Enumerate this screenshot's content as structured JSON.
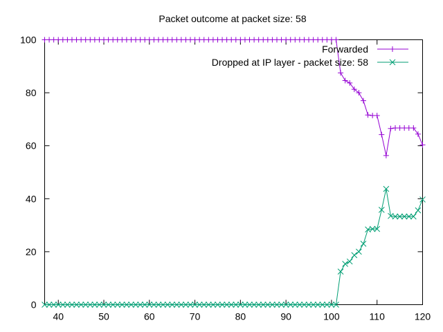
{
  "chart_data": {
    "type": "line",
    "title": "Packet outcome at packet size: 58",
    "xlabel": "",
    "ylabel": "",
    "xlim": [
      37,
      120
    ],
    "ylim": [
      0,
      100
    ],
    "x_ticks": [
      "40",
      "50",
      "60",
      "70",
      "80",
      "90",
      "100",
      "110",
      "120"
    ],
    "y_ticks": [
      "0",
      "20",
      "40",
      "60",
      "80",
      "100"
    ],
    "grid": false,
    "legend_position": "top-right",
    "x": [
      37,
      38,
      39,
      40,
      41,
      42,
      43,
      44,
      45,
      46,
      47,
      48,
      49,
      50,
      51,
      52,
      53,
      54,
      55,
      56,
      57,
      58,
      59,
      60,
      61,
      62,
      63,
      64,
      65,
      66,
      67,
      68,
      69,
      70,
      71,
      72,
      73,
      74,
      75,
      76,
      77,
      78,
      79,
      80,
      81,
      82,
      83,
      84,
      85,
      86,
      87,
      88,
      89,
      90,
      91,
      92,
      93,
      94,
      95,
      96,
      97,
      98,
      99,
      100,
      101,
      102,
      103,
      104,
      105,
      106,
      107,
      108,
      109,
      110,
      111,
      112,
      113,
      114,
      115,
      116,
      117,
      118,
      119,
      120
    ],
    "series": [
      {
        "name": "Forwarded",
        "color": "#9400d3",
        "marker": "plus",
        "values": [
          100,
          100,
          100,
          100,
          100,
          100,
          100,
          100,
          100,
          100,
          100,
          100,
          100,
          100,
          100,
          100,
          100,
          100,
          100,
          100,
          100,
          100,
          100,
          100,
          100,
          100,
          100,
          100,
          100,
          100,
          100,
          100,
          100,
          100,
          100,
          100,
          100,
          100,
          100,
          100,
          100,
          100,
          100,
          100,
          100,
          100,
          100,
          100,
          100,
          100,
          100,
          100,
          100,
          100,
          100,
          100,
          100,
          100,
          100,
          100,
          100,
          100,
          100,
          100,
          100,
          87.5,
          84.6,
          83.7,
          81.3,
          80.0,
          77.0,
          71.6,
          71.4,
          71.4,
          64.2,
          56.3,
          66.5,
          66.7,
          66.7,
          66.7,
          66.7,
          66.7,
          64.4,
          60.3
        ]
      },
      {
        "name": "Dropped at IP layer - packet size: 58",
        "color": "#009e73",
        "marker": "x",
        "values": [
          0,
          0,
          0,
          0,
          0,
          0,
          0,
          0,
          0,
          0,
          0,
          0,
          0,
          0,
          0,
          0,
          0,
          0,
          0,
          0,
          0,
          0,
          0,
          0,
          0,
          0,
          0,
          0,
          0,
          0,
          0,
          0,
          0,
          0,
          0,
          0,
          0,
          0,
          0,
          0,
          0,
          0,
          0,
          0,
          0,
          0,
          0,
          0,
          0,
          0,
          0,
          0,
          0,
          0,
          0,
          0,
          0,
          0,
          0,
          0,
          0,
          0,
          0,
          0,
          0,
          12.5,
          15.4,
          16.3,
          18.7,
          20.0,
          23.0,
          28.4,
          28.6,
          28.6,
          35.8,
          43.7,
          33.5,
          33.3,
          33.3,
          33.3,
          33.3,
          33.3,
          35.6,
          39.7
        ]
      }
    ]
  }
}
